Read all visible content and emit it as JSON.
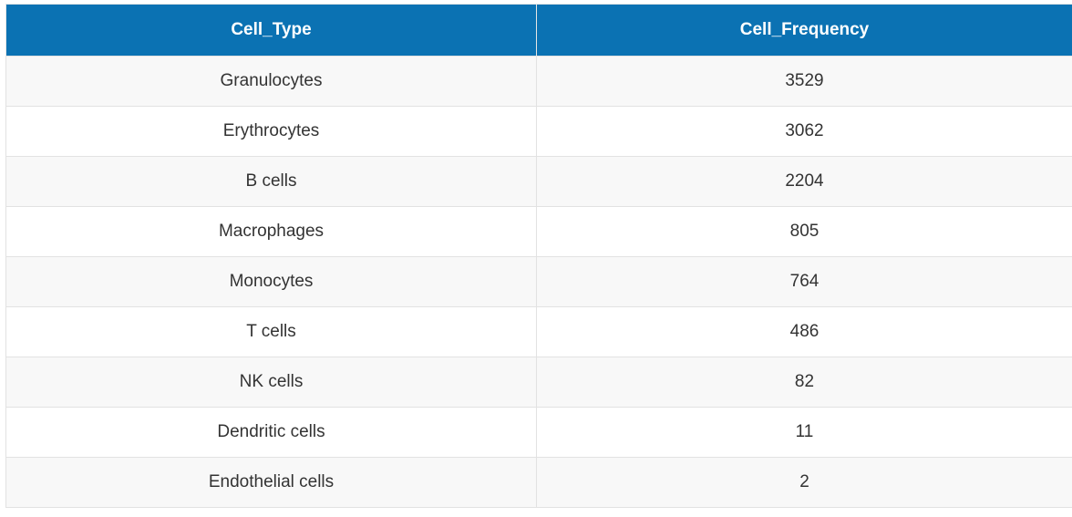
{
  "table": {
    "header_color": "#0b72b3",
    "columns": [
      "Cell_Type",
      "Cell_Frequency"
    ],
    "rows": [
      [
        "Granulocytes",
        "3529"
      ],
      [
        "Erythrocytes",
        "3062"
      ],
      [
        "B cells",
        "2204"
      ],
      [
        "Macrophages",
        "805"
      ],
      [
        "Monocytes",
        "764"
      ],
      [
        "T cells",
        "486"
      ],
      [
        "NK cells",
        "82"
      ],
      [
        "Dendritic cells",
        "11"
      ],
      [
        "Endothelial cells",
        "2"
      ]
    ]
  }
}
